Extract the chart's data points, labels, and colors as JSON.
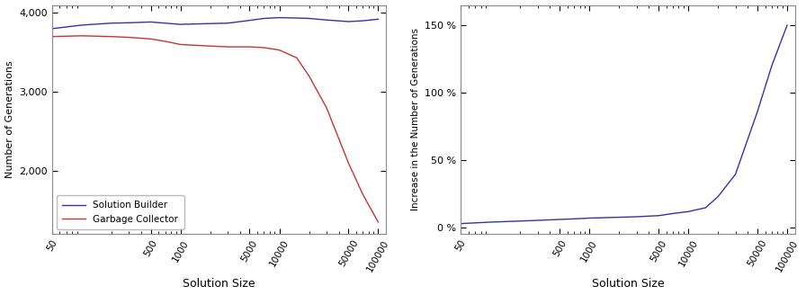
{
  "x_ticks": [
    50,
    500,
    1000,
    5000,
    10000,
    50000,
    100000
  ],
  "sb_x": [
    50,
    100,
    200,
    300,
    500,
    700,
    1000,
    2000,
    3000,
    5000,
    7000,
    10000,
    15000,
    20000,
    30000,
    50000,
    70000,
    100000
  ],
  "sb_y": [
    3800,
    3845,
    3870,
    3875,
    3885,
    3870,
    3855,
    3865,
    3870,
    3905,
    3930,
    3940,
    3935,
    3930,
    3910,
    3890,
    3900,
    3920
  ],
  "gc_x": [
    50,
    100,
    200,
    300,
    500,
    700,
    1000,
    2000,
    3000,
    5000,
    7000,
    10000,
    15000,
    20000,
    30000,
    50000,
    70000,
    100000
  ],
  "gc_y": [
    3700,
    3710,
    3700,
    3690,
    3670,
    3640,
    3600,
    3580,
    3570,
    3570,
    3560,
    3530,
    3430,
    3200,
    2800,
    2100,
    1700,
    1350
  ],
  "ratio_x": [
    50,
    100,
    200,
    300,
    500,
    700,
    1000,
    2000,
    3000,
    5000,
    7000,
    10000,
    15000,
    20000,
    30000,
    50000,
    70000,
    100000
  ],
  "ratio_y": [
    2.7,
    3.8,
    4.6,
    5.1,
    5.8,
    6.2,
    6.8,
    7.4,
    7.8,
    8.6,
    10.2,
    11.6,
    14.5,
    22.8,
    39.3,
    85.7,
    120.0,
    150.0
  ],
  "sb_color": "#3333aa",
  "gc_color": "#cc3333",
  "ratio_color": "#3333aa",
  "ylabel_left": "Number of Generations",
  "ylabel_right": "Increase in the Number of Generations",
  "xlabel": "Solution Size",
  "legend_sb": "Solution Builder",
  "legend_gc": "Garbage Collector",
  "ylim_left": [
    1200,
    4100
  ],
  "ylim_right": [
    -5,
    165
  ],
  "yticks_left": [
    2000,
    3000,
    4000
  ],
  "yticks_right": [
    0,
    50,
    100,
    150
  ],
  "xlim": [
    50,
    120000
  ],
  "background_color": "#ffffff"
}
